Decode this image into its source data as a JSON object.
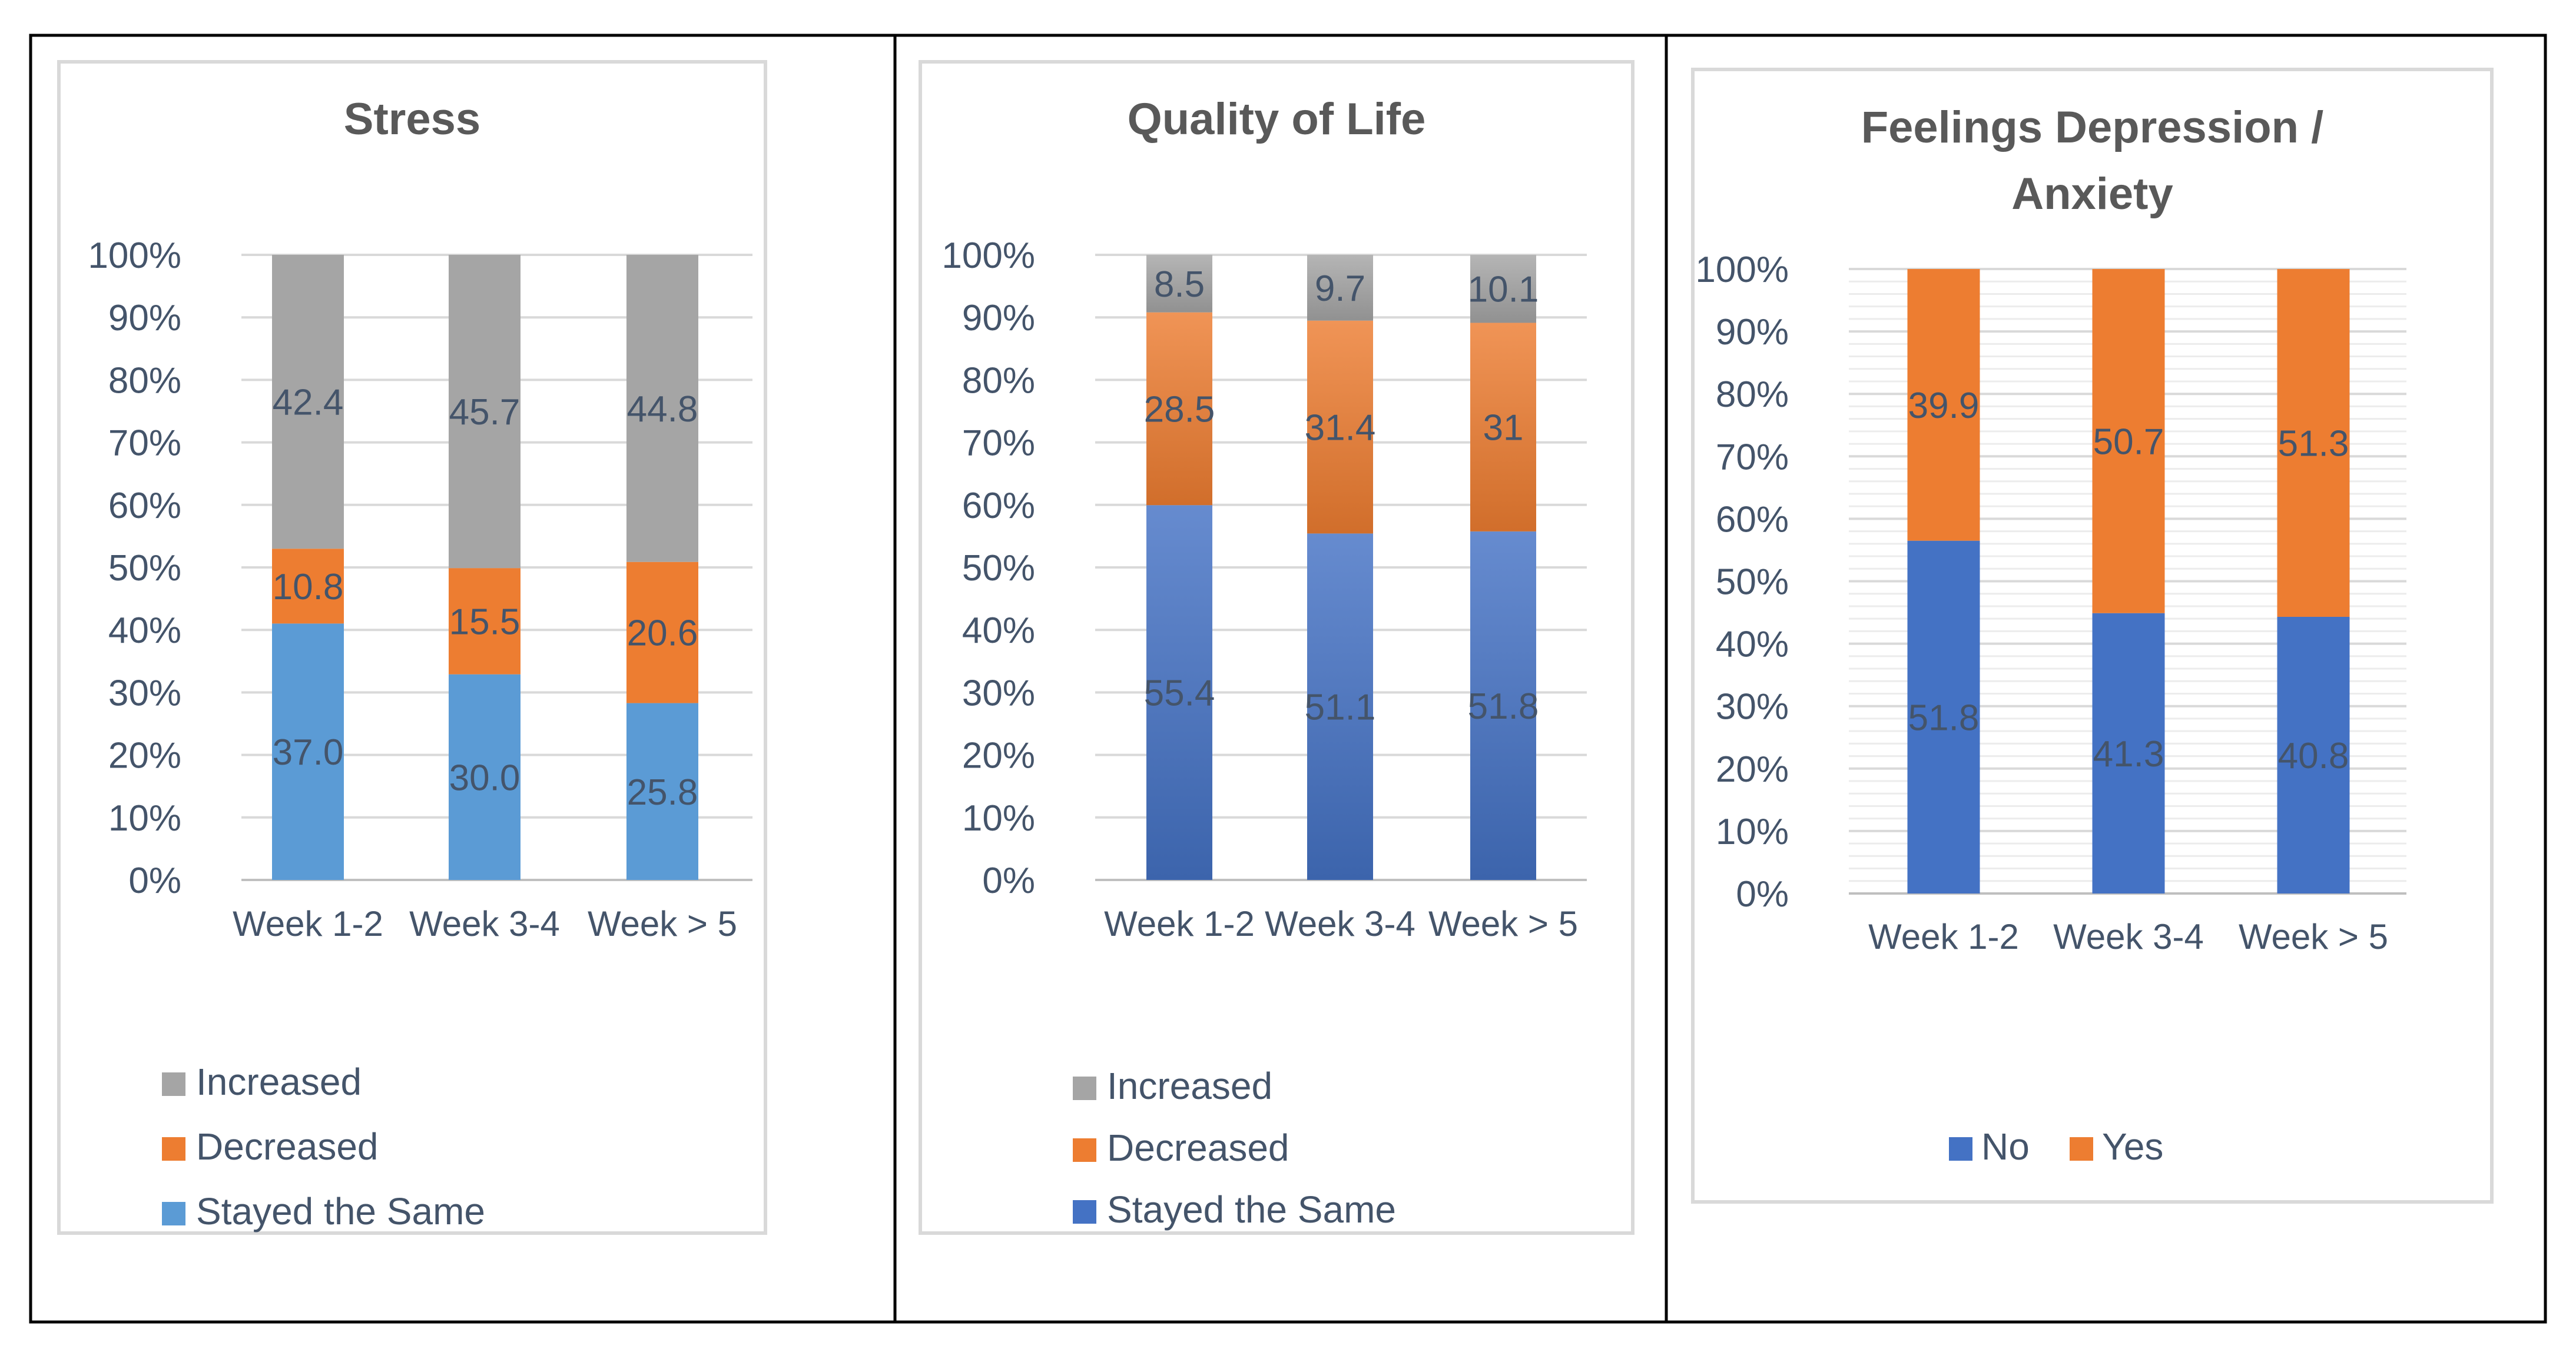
{
  "chart_data": [
    {
      "type": "bar",
      "stacked": "percent",
      "title": "Stress",
      "categories": [
        "Week 1-2",
        "Week 3-4",
        "Week  > 5"
      ],
      "y_ticks": [
        "0%",
        "10%",
        "20%",
        "30%",
        "40%",
        "50%",
        "60%",
        "70%",
        "80%",
        "90%",
        "100%"
      ],
      "ylim": [
        0,
        100
      ],
      "series": [
        {
          "name": "Stayed the Same",
          "values": [
            37.0,
            30.0,
            25.8
          ],
          "labels": [
            "37.0",
            "30.0",
            "25.8"
          ],
          "color": "#5b9bd5"
        },
        {
          "name": "Decreased",
          "values": [
            10.8,
            15.5,
            20.6
          ],
          "labels": [
            "10.8",
            "15.5",
            "20.6"
          ],
          "color": "#ed7d31"
        },
        {
          "name": "Increased",
          "values": [
            42.4,
            45.7,
            44.8
          ],
          "labels": [
            "42.4",
            "45.7",
            "44.8"
          ],
          "color": "#a5a5a5"
        }
      ],
      "legend": [
        "Increased",
        "Decreased",
        "Stayed the Same"
      ],
      "legend_position": "bottom"
    },
    {
      "type": "bar",
      "stacked": "percent",
      "title": "Quality of Life",
      "categories": [
        "Week 1-2",
        "Week 3-4",
        "Week  > 5"
      ],
      "y_ticks": [
        "0%",
        "10%",
        "20%",
        "30%",
        "40%",
        "50%",
        "60%",
        "70%",
        "80%",
        "90%",
        "100%"
      ],
      "ylim": [
        0,
        100
      ],
      "series": [
        {
          "name": "Stayed the Same",
          "values": [
            55.4,
            51.1,
            51.8
          ],
          "labels": [
            "55.4",
            "51.1",
            "51.8"
          ],
          "color": "#4472c4"
        },
        {
          "name": "Decreased",
          "values": [
            28.5,
            31.4,
            31
          ],
          "labels": [
            "28.5",
            "31.4",
            "31"
          ],
          "color": "#ed7d31"
        },
        {
          "name": "Increased",
          "values": [
            8.5,
            9.7,
            10.1
          ],
          "labels": [
            "8.5",
            "9.7",
            "10.1"
          ],
          "color": "#a5a5a5"
        }
      ],
      "legend": [
        "Increased",
        "Decreased",
        "Stayed the Same"
      ],
      "legend_position": "bottom"
    },
    {
      "type": "bar",
      "stacked": "percent",
      "title": "Feelings Depression / Anxiety",
      "title_lines": [
        "Feelings Depression /",
        "Anxiety"
      ],
      "categories": [
        "Week 1-2",
        "Week 3-4",
        "Week  > 5"
      ],
      "y_ticks": [
        "0%",
        "10%",
        "20%",
        "30%",
        "40%",
        "50%",
        "60%",
        "70%",
        "80%",
        "90%",
        "100%"
      ],
      "ylim": [
        0,
        100
      ],
      "series": [
        {
          "name": "No",
          "values": [
            51.8,
            41.3,
            40.8
          ],
          "labels": [
            "51.8",
            "41.3",
            "40.8"
          ],
          "color": "#4472c4"
        },
        {
          "name": "Yes",
          "values": [
            39.9,
            50.7,
            51.3
          ],
          "labels": [
            "39.9",
            "50.7",
            "51.3"
          ],
          "color": "#ed7d31"
        }
      ],
      "legend": [
        "No",
        "Yes"
      ],
      "legend_position": "bottom"
    }
  ],
  "colors": {
    "text": "#44546a",
    "title": "#595959",
    "grid": "#d9d9d9",
    "chart_border": "#d9d9d9",
    "table_border": "#000000"
  }
}
